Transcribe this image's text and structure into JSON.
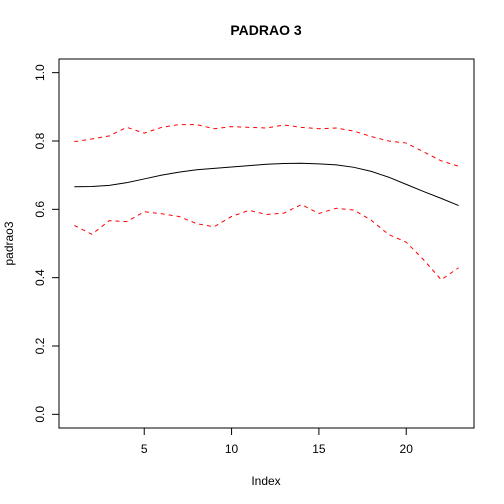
{
  "chart_data": {
    "type": "line",
    "title": "PADRAO 3",
    "xlabel": "Index",
    "ylabel": "padrao3",
    "xlim": [
      0.12,
      23.88
    ],
    "ylim": [
      -0.04,
      1.04
    ],
    "x_ticks": [
      5,
      10,
      15,
      20
    ],
    "y_ticks": [
      0.0,
      0.2,
      0.4,
      0.6,
      0.8,
      1.0
    ],
    "y_tick_labels": [
      "0.0",
      "0.2",
      "0.4",
      "0.6",
      "0.8",
      "1.0"
    ],
    "grid": false,
    "x": [
      1,
      2,
      3,
      4,
      5,
      6,
      7,
      8,
      9,
      10,
      11,
      12,
      13,
      14,
      15,
      16,
      17,
      18,
      19,
      20,
      21,
      22,
      23
    ],
    "series": [
      {
        "color": "#000000",
        "dash": "solid",
        "values": [
          0.666,
          0.667,
          0.67,
          0.678,
          0.689,
          0.7,
          0.709,
          0.716,
          0.72,
          0.724,
          0.728,
          0.732,
          0.734,
          0.735,
          0.733,
          0.73,
          0.723,
          0.711,
          0.694,
          0.673,
          0.652,
          0.632,
          0.611
        ]
      },
      {
        "color": "#ff0000",
        "dash": "dashed",
        "values": [
          0.798,
          0.806,
          0.815,
          0.84,
          0.823,
          0.84,
          0.848,
          0.848,
          0.836,
          0.842,
          0.84,
          0.838,
          0.847,
          0.84,
          0.836,
          0.838,
          0.829,
          0.813,
          0.8,
          0.794,
          0.768,
          0.742,
          0.726
        ]
      },
      {
        "color": "#ff0000",
        "dash": "dashed",
        "values": [
          0.553,
          0.527,
          0.567,
          0.564,
          0.593,
          0.587,
          0.579,
          0.558,
          0.549,
          0.579,
          0.597,
          0.585,
          0.589,
          0.614,
          0.588,
          0.603,
          0.598,
          0.568,
          0.526,
          0.504,
          0.452,
          0.394,
          0.429
        ]
      }
    ]
  }
}
